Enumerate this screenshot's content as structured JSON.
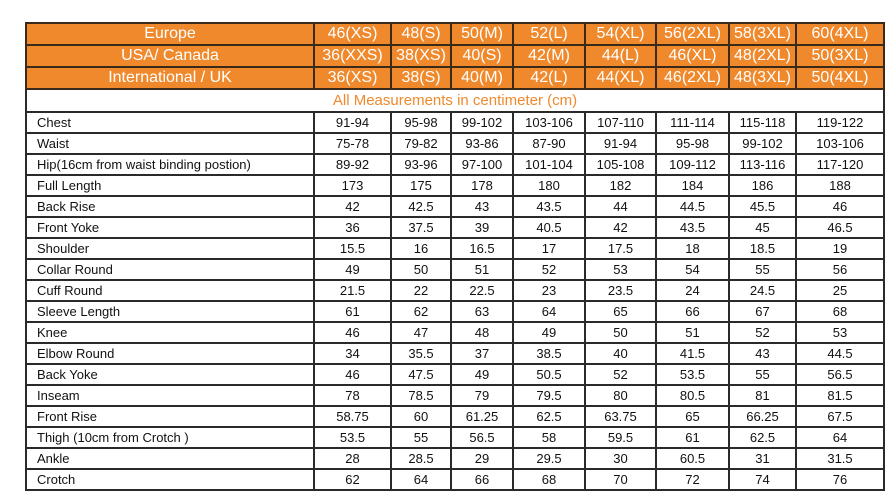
{
  "headers": [
    {
      "label": "Europe",
      "sizes": [
        "46(XS)",
        "48(S)",
        "50(M)",
        "52(L)",
        "54(XL)",
        "56(2XL)",
        "58(3XL)",
        "60(4XL)"
      ]
    },
    {
      "label": "USA/ Canada",
      "sizes": [
        "36(XXS)",
        "38(XS)",
        "40(S)",
        "42(M)",
        "44(L)",
        "46(XL)",
        "48(2XL)",
        "50(3XL)"
      ]
    },
    {
      "label": "International / UK",
      "sizes": [
        "36(XS)",
        "38(S)",
        "40(M)",
        "42(L)",
        "44(XL)",
        "46(2XL)",
        "48(3XL)",
        "50(4XL)"
      ]
    }
  ],
  "note": "All Measurements in centimeter (cm)",
  "rows": [
    {
      "label": "Chest",
      "values": [
        "91-94",
        "95-98",
        "99-102",
        "103-106",
        "107-110",
        "111-114",
        "115-118",
        "119-122"
      ]
    },
    {
      "label": "Waist",
      "values": [
        "75-78",
        "79-82",
        "93-86",
        "87-90",
        "91-94",
        "95-98",
        "99-102",
        "103-106"
      ]
    },
    {
      "label": "Hip(16cm from waist binding postion)",
      "values": [
        "89-92",
        "93-96",
        "97-100",
        "101-104",
        "105-108",
        "109-112",
        "113-116",
        "117-120"
      ]
    },
    {
      "label": "Full Length",
      "values": [
        "173",
        "175",
        "178",
        "180",
        "182",
        "184",
        "186",
        "188"
      ]
    },
    {
      "label": "Back Rise",
      "values": [
        "42",
        "42.5",
        "43",
        "43.5",
        "44",
        "44.5",
        "45.5",
        "46"
      ]
    },
    {
      "label": "Front Yoke",
      "values": [
        "36",
        "37.5",
        "39",
        "40.5",
        "42",
        "43.5",
        "45",
        "46.5"
      ]
    },
    {
      "label": "Shoulder",
      "values": [
        "15.5",
        "16",
        "16.5",
        "17",
        "17.5",
        "18",
        "18.5",
        "19"
      ]
    },
    {
      "label": "Collar Round",
      "values": [
        "49",
        "50",
        "51",
        "52",
        "53",
        "54",
        "55",
        "56"
      ]
    },
    {
      "label": "Cuff Round",
      "values": [
        "21.5",
        "22",
        "22.5",
        "23",
        "23.5",
        "24",
        "24.5",
        "25"
      ]
    },
    {
      "label": "Sleeve Length",
      "values": [
        "61",
        "62",
        "63",
        "64",
        "65",
        "66",
        "67",
        "68"
      ]
    },
    {
      "label": "Knee",
      "values": [
        "46",
        "47",
        "48",
        "49",
        "50",
        "51",
        "52",
        "53"
      ]
    },
    {
      "label": "Elbow Round",
      "values": [
        "34",
        "35.5",
        "37",
        "38.5",
        "40",
        "41.5",
        "43",
        "44.5"
      ]
    },
    {
      "label": "Back Yoke",
      "values": [
        "46",
        "47.5",
        "49",
        "50.5",
        "52",
        "53.5",
        "55",
        "56.5"
      ]
    },
    {
      "label": "Inseam",
      "values": [
        "78",
        "78.5",
        "79",
        "79.5",
        "80",
        "80.5",
        "81",
        "81.5"
      ]
    },
    {
      "label": "Front Rise",
      "values": [
        "58.75",
        "60",
        "61.25",
        "62.5",
        "63.75",
        "65",
        "66.25",
        "67.5"
      ]
    },
    {
      "label": "Thigh (10cm from Crotch )",
      "values": [
        "53.5",
        "55",
        "56.5",
        "58",
        "59.5",
        "61",
        "62.5",
        "64"
      ]
    },
    {
      "label": "Ankle",
      "values": [
        "28",
        "28.5",
        "29",
        "29.5",
        "30",
        "60.5",
        "31",
        "31.5"
      ]
    },
    {
      "label": "Crotch",
      "values": [
        "62",
        "64",
        "66",
        "68",
        "70",
        "72",
        "74",
        "76"
      ]
    }
  ],
  "colors": {
    "header_bg": "#f0892c",
    "header_text": "#ffffff",
    "note_text": "#f0892c",
    "border": "#2a2a2a"
  }
}
